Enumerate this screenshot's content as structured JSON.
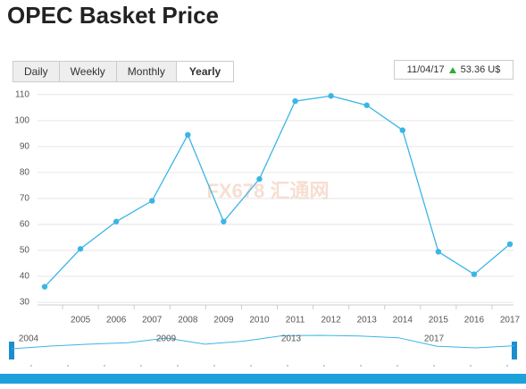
{
  "header": {
    "title": "OPEC Basket Price"
  },
  "buttons": [
    {
      "label": "Daily",
      "active": false
    },
    {
      "label": "Weekly",
      "active": false
    },
    {
      "label": "Monthly",
      "active": false
    },
    {
      "label": "Yearly",
      "active": true
    }
  ],
  "info": {
    "date": "11/04/17",
    "price": "53.36 U$"
  },
  "watermark": "FX678 汇通网",
  "chart_data": {
    "type": "line",
    "x": [
      2004,
      2005,
      2006,
      2007,
      2008,
      2009,
      2010,
      2011,
      2012,
      2013,
      2014,
      2015,
      2016,
      2017
    ],
    "series": [
      {
        "name": "OPEC Basket Price",
        "color": "#3bb5e6",
        "values": [
          36,
          50.6,
          61.1,
          69.1,
          94.5,
          61.1,
          77.5,
          107.5,
          109.5,
          105.9,
          96.3,
          49.5,
          40.8,
          52.4
        ]
      }
    ],
    "xlim": [
      2004.3,
      2017.6
    ],
    "xticks": [
      2005,
      2006,
      2007,
      2008,
      2009,
      2010,
      2011,
      2012,
      2013,
      2014,
      2015,
      2016,
      2017
    ],
    "ylim": [
      29,
      112
    ],
    "yticks": [
      30,
      40,
      50,
      60,
      70,
      80,
      90,
      100,
      110
    ],
    "grid": true
  },
  "navigator": {
    "labels": [
      "2004",
      "2009",
      "2013",
      "2017"
    ]
  }
}
